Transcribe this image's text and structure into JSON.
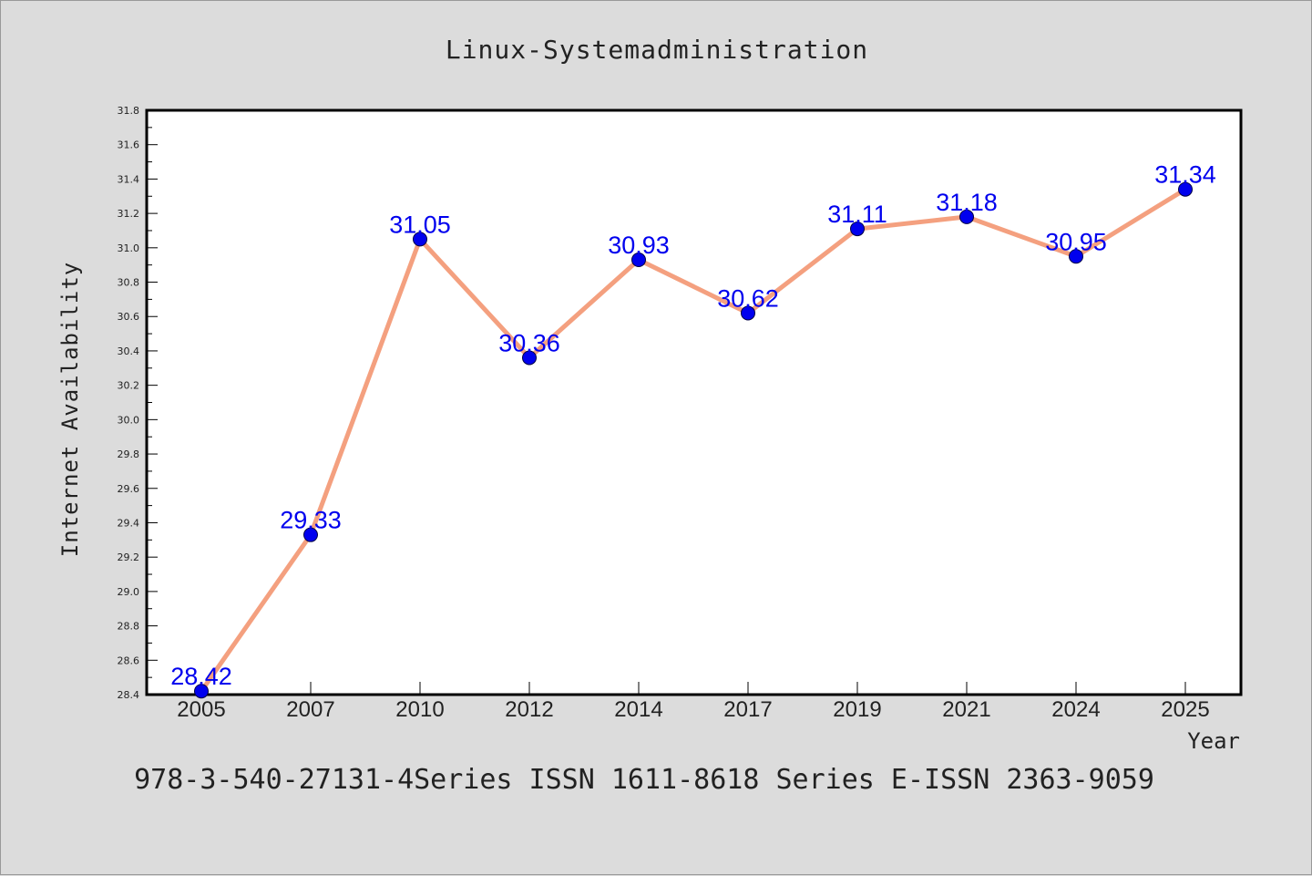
{
  "colors": {
    "background": "#dcdcdc",
    "plot_background": "#ffffff",
    "line": "#f4a07f",
    "marker": "#0000ee",
    "label": "#0000ee",
    "text": "#222222"
  },
  "caption": "978-3-540-27131-4Series ISSN 1611-8618 Series E-ISSN 2363-9059",
  "chart_data": {
    "type": "line",
    "title": "Linux-Systemadministration",
    "xlabel": "Year",
    "ylabel": "Internet Availability",
    "categories": [
      "2005",
      "2007",
      "2010",
      "2012",
      "2014",
      "2017",
      "2019",
      "2021",
      "2024",
      "2025"
    ],
    "values": [
      28.42,
      29.33,
      31.05,
      30.36,
      30.93,
      30.62,
      31.11,
      31.18,
      30.95,
      31.34
    ],
    "data_labels": [
      "28.42",
      "29.33",
      "31.05",
      "30.36",
      "30.93",
      "30.62",
      "31.11",
      "31.18",
      "30.95",
      "31.34"
    ],
    "ylim": [
      28.4,
      31.8
    ],
    "yticks": [
      "28.4",
      "28.6",
      "28.8",
      "29.0",
      "29.2",
      "29.4",
      "29.6",
      "29.8",
      "30.0",
      "30.2",
      "30.4",
      "30.6",
      "30.8",
      "31.0",
      "31.2",
      "31.4",
      "31.6",
      "31.8"
    ],
    "grid": false,
    "legend": "none"
  }
}
